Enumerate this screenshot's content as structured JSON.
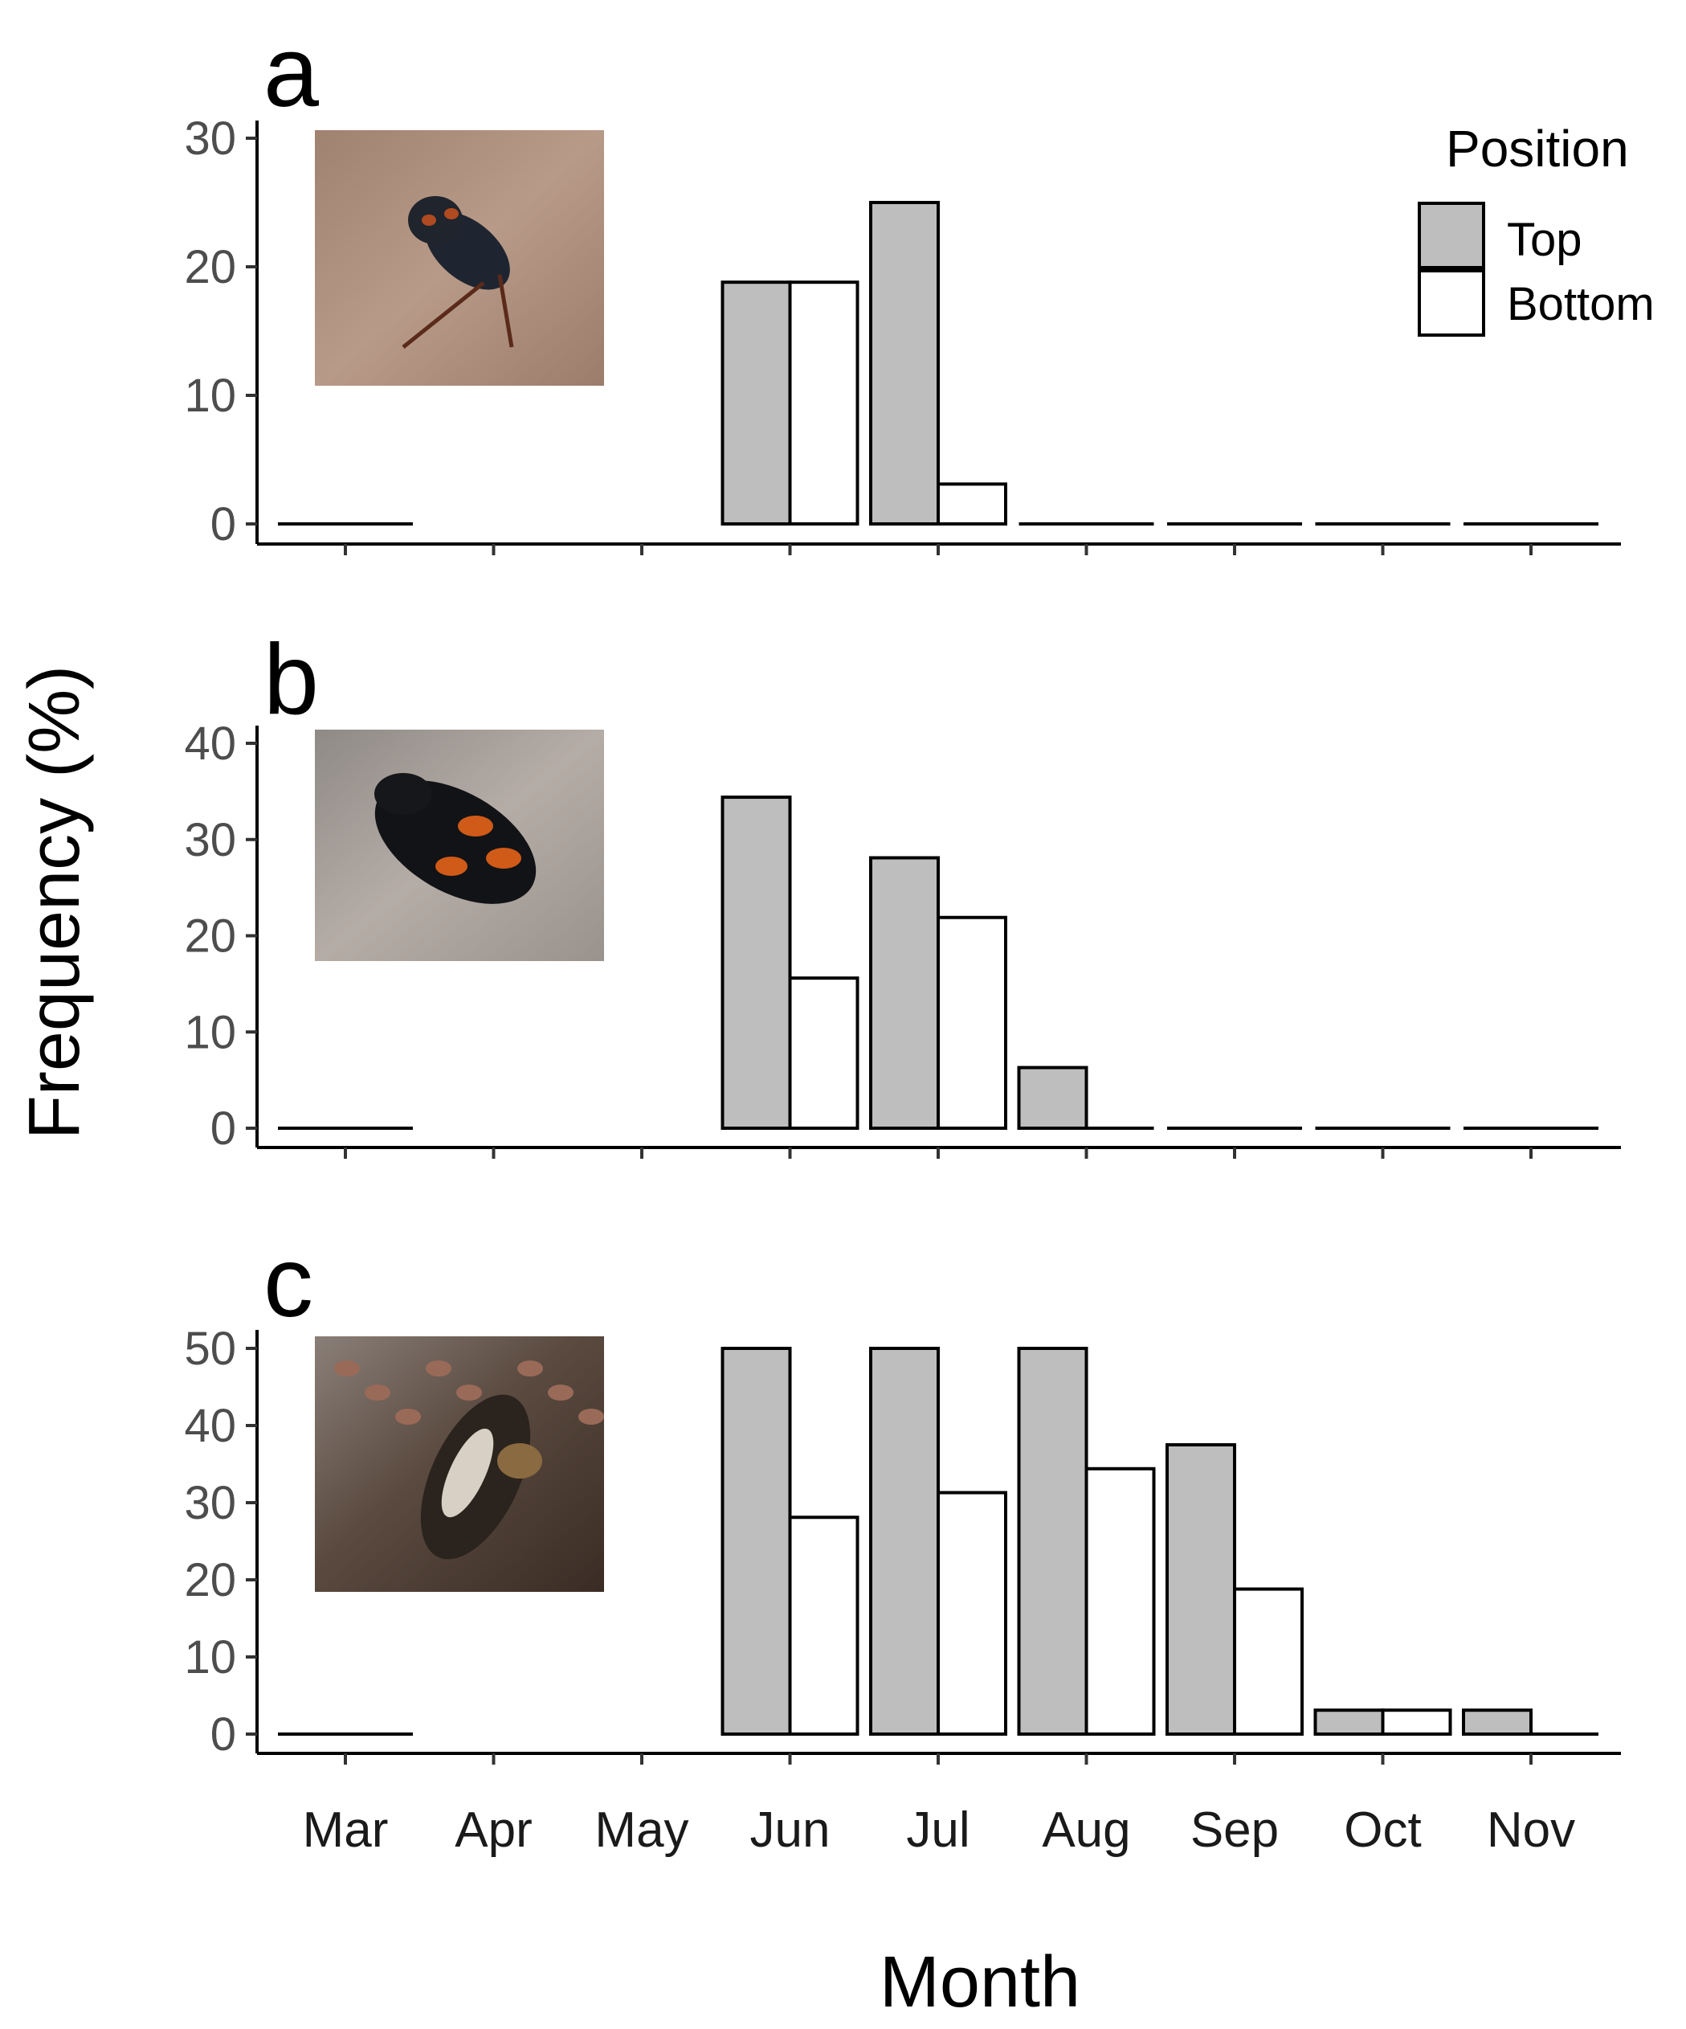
{
  "chart_data": {
    "type": "bar",
    "xlabel": "Month",
    "ylabel": "Frequency (%)",
    "legend": {
      "title": "Position",
      "placement": "top-right",
      "entries": [
        {
          "name": "Top",
          "color": "#bebebe"
        },
        {
          "name": "Bottom",
          "color": "#ffffff"
        }
      ]
    },
    "categories": [
      "Mar",
      "Apr",
      "May",
      "Jun",
      "Jul",
      "Aug",
      "Sep",
      "Oct",
      "Nov"
    ],
    "panels": [
      {
        "label": "a",
        "ylim": [
          0,
          30
        ],
        "yticks": [
          0,
          10,
          20,
          30
        ],
        "photo_icon": "beetle-photo-icon",
        "series": [
          {
            "name": "Top",
            "values": [
              0,
              null,
              null,
              18.8,
              25,
              0,
              0,
              0,
              0
            ]
          },
          {
            "name": "Bottom",
            "values": [
              0,
              null,
              null,
              18.8,
              3.1,
              0,
              0,
              0,
              0
            ]
          }
        ]
      },
      {
        "label": "b",
        "ylim": [
          0,
          40
        ],
        "yticks": [
          0,
          10,
          20,
          30,
          40
        ],
        "photo_icon": "beetle-photo-icon",
        "series": [
          {
            "name": "Top",
            "values": [
              0,
              null,
              null,
              34.4,
              28.1,
              6.3,
              0,
              0,
              0
            ]
          },
          {
            "name": "Bottom",
            "values": [
              0,
              null,
              null,
              15.6,
              21.9,
              0,
              0,
              0,
              0
            ]
          }
        ]
      },
      {
        "label": "c",
        "ylim": [
          0,
          50
        ],
        "yticks": [
          0,
          10,
          20,
          30,
          40,
          50
        ],
        "photo_icon": "beetle-photo-icon",
        "series": [
          {
            "name": "Top",
            "values": [
              0,
              null,
              null,
              50,
              50,
              50,
              37.5,
              3.1,
              3.1
            ]
          },
          {
            "name": "Bottom",
            "values": [
              0,
              null,
              null,
              28.1,
              31.3,
              34.4,
              18.8,
              3.1,
              0
            ]
          }
        ]
      }
    ]
  }
}
